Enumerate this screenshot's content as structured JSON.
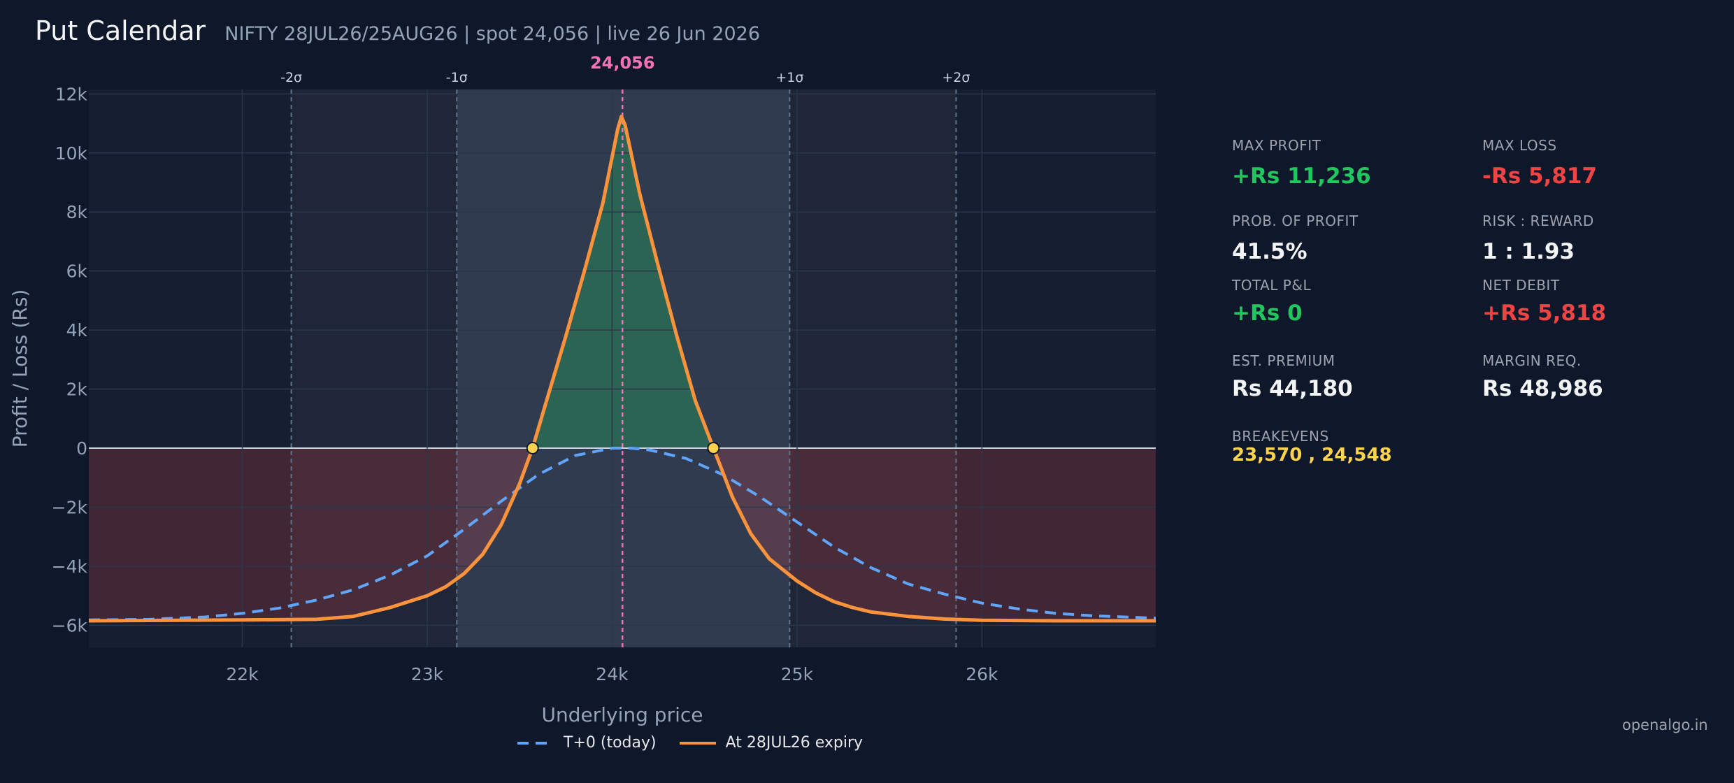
{
  "header": {
    "title": "Put Calendar",
    "subtitle": "NIFTY 28JUL26/25AUG26  |  spot 24,056  |  live 26 Jun 2026"
  },
  "chart_data": {
    "type": "line",
    "xlabel": "Underlying price",
    "ylabel": "Profit / Loss (Rs)",
    "xlim": [
      21170,
      26940
    ],
    "ylim": [
      -6750,
      12150
    ],
    "x_ticks": [
      {
        "value": 22000,
        "label": "22k"
      },
      {
        "value": 23000,
        "label": "23k"
      },
      {
        "value": 24000,
        "label": "24k"
      },
      {
        "value": 25000,
        "label": "25k"
      },
      {
        "value": 26000,
        "label": "26k"
      }
    ],
    "y_ticks": [
      {
        "value": 12000,
        "label": "12k"
      },
      {
        "value": 10000,
        "label": "10k"
      },
      {
        "value": 8000,
        "label": "8k"
      },
      {
        "value": 6000,
        "label": "6k"
      },
      {
        "value": 4000,
        "label": "4k"
      },
      {
        "value": 2000,
        "label": "2k"
      },
      {
        "value": 0,
        "label": "0"
      },
      {
        "value": -2000,
        "label": "−2k"
      },
      {
        "value": -4000,
        "label": "−4k"
      },
      {
        "value": -6000,
        "label": "−6k"
      }
    ],
    "spot": {
      "value": 24056,
      "label": "24,056"
    },
    "sigma_lines": [
      {
        "value": 22265,
        "label": "-2σ"
      },
      {
        "value": 23160,
        "label": "-1σ"
      },
      {
        "value": 24960,
        "label": "+1σ"
      },
      {
        "value": 25860,
        "label": "+2σ"
      }
    ],
    "breakevens": [
      23570,
      24548
    ],
    "grid": true,
    "legend_position": "bottom",
    "series": [
      {
        "name": "T+0 (today)",
        "color": "#60a5fa",
        "dash": true,
        "x": [
          21170,
          21500,
          21800,
          22000,
          22200,
          22400,
          22600,
          22800,
          23000,
          23200,
          23400,
          23600,
          23800,
          24000,
          24100,
          24200,
          24400,
          24600,
          24800,
          25000,
          25200,
          25400,
          25600,
          25800,
          26000,
          26200,
          26400,
          26600,
          26940
        ],
        "y": [
          -5820,
          -5800,
          -5720,
          -5600,
          -5420,
          -5150,
          -4800,
          -4300,
          -3650,
          -2750,
          -1800,
          -900,
          -250,
          0,
          0,
          -60,
          -350,
          -900,
          -1650,
          -2500,
          -3350,
          -4050,
          -4600,
          -4950,
          -5250,
          -5450,
          -5600,
          -5680,
          -5760
        ]
      },
      {
        "name": "At 28JUL26 expiry",
        "color": "#fb923c",
        "dash": false,
        "x": [
          21170,
          22000,
          22400,
          22600,
          22800,
          23000,
          23100,
          23200,
          23300,
          23400,
          23500,
          23570,
          23650,
          23750,
          23850,
          23950,
          24030,
          24050,
          24070,
          24150,
          24250,
          24350,
          24450,
          24548,
          24650,
          24750,
          24850,
          25000,
          25100,
          25200,
          25300,
          25400,
          25600,
          25800,
          26000,
          26400,
          26940
        ],
        "y": [
          -5850,
          -5820,
          -5800,
          -5700,
          -5400,
          -5000,
          -4700,
          -4250,
          -3600,
          -2600,
          -1200,
          0,
          1700,
          3800,
          6000,
          8300,
          10800,
          11236,
          10950,
          8600,
          6150,
          3800,
          1600,
          0,
          -1650,
          -2900,
          -3750,
          -4500,
          -4900,
          -5200,
          -5400,
          -5550,
          -5700,
          -5790,
          -5830,
          -5850,
          -5850
        ]
      }
    ]
  },
  "stats": {
    "max_profit": {
      "label": "MAX PROFIT",
      "value": "+Rs 11,236"
    },
    "max_loss": {
      "label": "MAX LOSS",
      "value": "-Rs 5,817"
    },
    "prob_profit": {
      "label": "PROB. OF PROFIT",
      "value": "41.5%"
    },
    "risk_reward": {
      "label": "RISK : REWARD",
      "value": "1 : 1.93"
    },
    "total_pnl": {
      "label": "TOTAL P&L",
      "value": "+Rs 0"
    },
    "net_debit": {
      "label": "NET DEBIT",
      "value": "+Rs 5,818"
    },
    "est_premium": {
      "label": "EST. PREMIUM",
      "value": "Rs 44,180"
    },
    "margin_req": {
      "label": "MARGIN REQ.",
      "value": "Rs 48,986"
    },
    "breakevens": {
      "label": "BREAKEVENS",
      "value": "23,570 , 24,548"
    }
  },
  "colors": {
    "background": "#0f172a",
    "plot_background": "#1e293b",
    "profit": "#22c55e",
    "loss": "#ef4444",
    "spot": "#f472b6",
    "breakeven": "#fcd34d"
  },
  "branding": "openalgo.in"
}
